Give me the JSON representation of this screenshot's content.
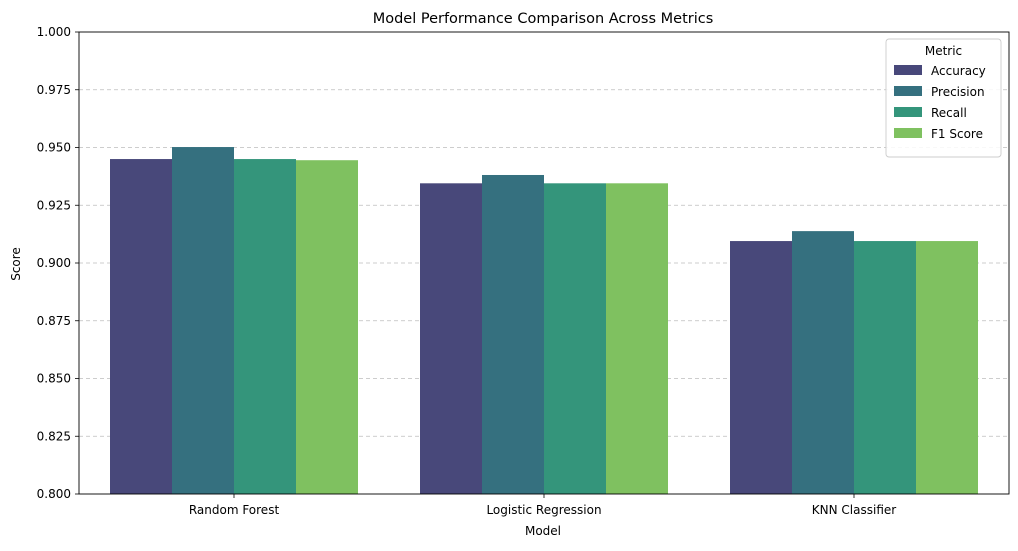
{
  "chart_data": {
    "type": "bar",
    "title": "Model Performance Comparison Across Metrics",
    "xlabel": "Model",
    "ylabel": "Score",
    "categories": [
      "Random Forest",
      "Logistic Regression",
      "KNN Classifier"
    ],
    "series": [
      {
        "name": "Accuracy",
        "color": "#48487a",
        "values": [
          0.945,
          0.9345,
          0.9095
        ]
      },
      {
        "name": "Precision",
        "color": "#35707f",
        "values": [
          0.9502,
          0.9381,
          0.9138
        ]
      },
      {
        "name": "Recall",
        "color": "#34957b",
        "values": [
          0.945,
          0.9345,
          0.9095
        ]
      },
      {
        "name": "F1 Score",
        "color": "#7fc160",
        "values": [
          0.9445,
          0.9345,
          0.9095
        ]
      }
    ],
    "ylim": [
      0.8,
      1.0
    ],
    "yticks": [
      "0.800",
      "0.825",
      "0.850",
      "0.875",
      "0.900",
      "0.925",
      "0.950",
      "0.975",
      "1.000"
    ],
    "grid": "y-dashed",
    "legend": {
      "title": "Metric",
      "placement": "top-right"
    }
  }
}
